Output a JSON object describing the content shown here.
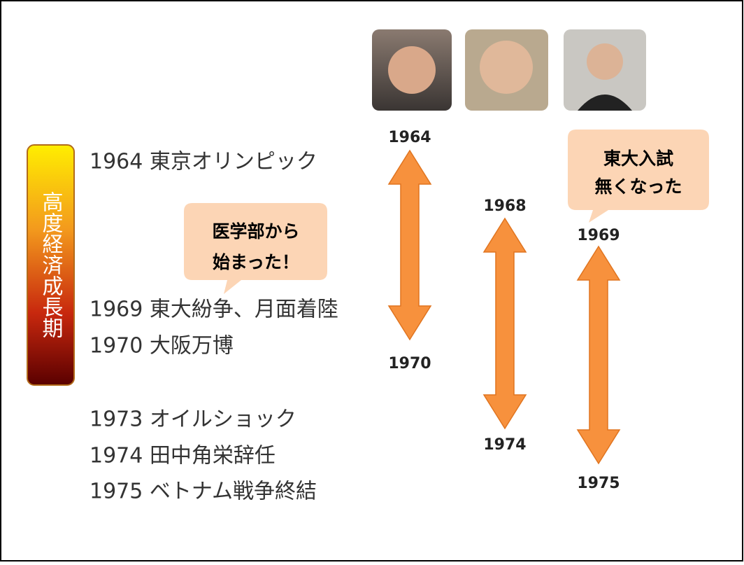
{
  "side_label": "高度経済成長期",
  "events": [
    "1964 東京オリンピック",
    "1969 東大紛争、月面着陸",
    "1970 大阪万博",
    "1973 オイルショック",
    "1974 田中角栄辞任",
    "1975 ベトナム戦争終結"
  ],
  "callouts": [
    {
      "lines": [
        "医学部から",
        "始まった！"
      ]
    },
    {
      "lines": [
        "東大入試",
        "無くなった"
      ]
    }
  ],
  "spans": [
    {
      "start": "1964",
      "end": "1970"
    },
    {
      "start": "1968",
      "end": "1974"
    },
    {
      "start": "1969",
      "end": "1975"
    }
  ]
}
